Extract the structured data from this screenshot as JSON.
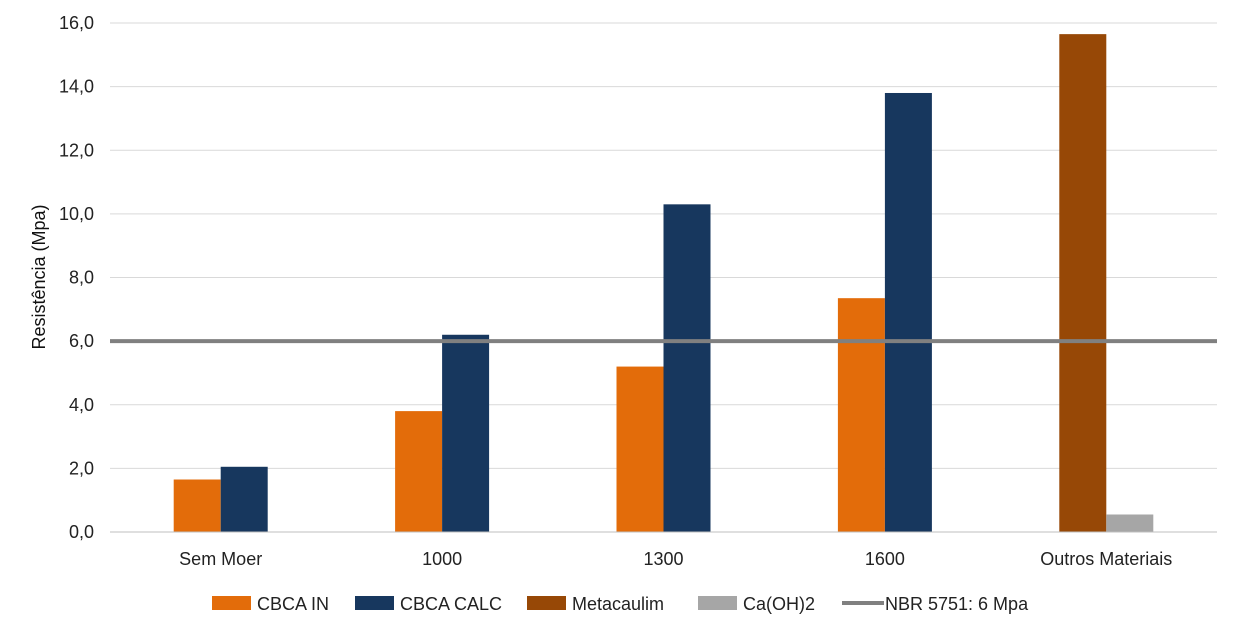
{
  "chart_data": {
    "type": "bar",
    "ylabel": "Resistência (Mpa)",
    "ylim": [
      0,
      16
    ],
    "yticks": [
      "0,0",
      "2,0",
      "4,0",
      "6,0",
      "8,0",
      "10,0",
      "12,0",
      "14,0",
      "16,0"
    ],
    "categories": [
      "Sem Moer",
      "1000",
      "1300",
      "1600",
      "Outros Materiais"
    ],
    "series": [
      {
        "name": "CBCA IN",
        "color": "#E36C0A",
        "values": [
          1.65,
          3.8,
          5.2,
          7.35,
          null
        ]
      },
      {
        "name": "CBCA CALC",
        "color": "#17375E",
        "values": [
          2.05,
          6.2,
          10.3,
          13.8,
          null
        ]
      },
      {
        "name": "Metacaulim",
        "color": "#974806",
        "values": [
          null,
          null,
          null,
          null,
          15.65
        ]
      },
      {
        "name": "Ca(OH)2",
        "color": "#A6A6A6",
        "values": [
          null,
          null,
          null,
          null,
          0.55
        ]
      }
    ],
    "reference_line": {
      "name": "NBR 5751: 6 Mpa",
      "value": 6,
      "color": "#808080"
    },
    "grid": true,
    "legend_position": "bottom"
  }
}
